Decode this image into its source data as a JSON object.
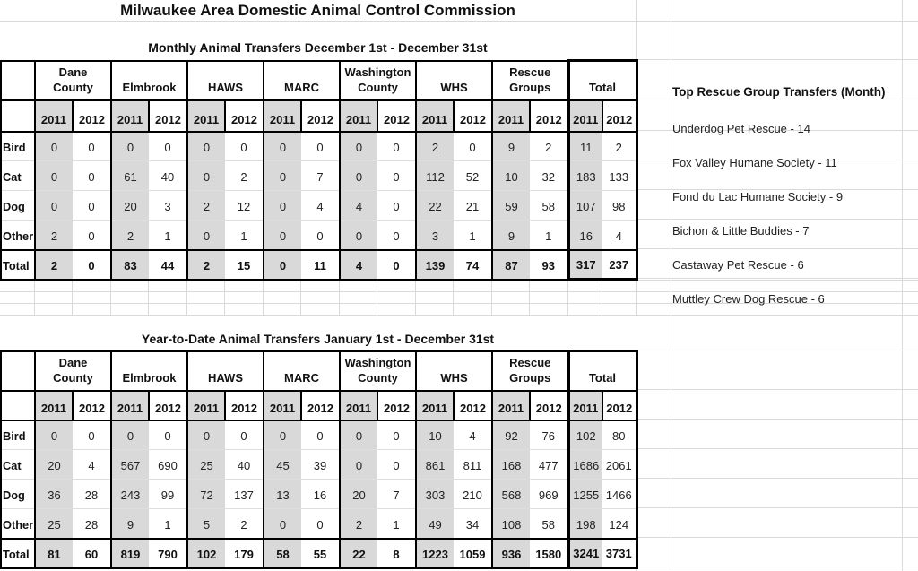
{
  "title": "Milwaukee Area Domestic Animal Control Commission",
  "columns": {
    "groups": [
      "Dane\nCounty",
      "Elmbrook",
      "HAWS",
      "MARC",
      "Washington\nCounty",
      "WHS",
      "Rescue\nGroups",
      "Total"
    ],
    "years": [
      "2011",
      "2012"
    ]
  },
  "tables": [
    {
      "title": "Monthly Animal Transfers December 1st - December 31st",
      "rows": [
        {
          "label": "Bird",
          "values": [
            0,
            0,
            0,
            0,
            0,
            0,
            0,
            0,
            0,
            0,
            2,
            0,
            9,
            2,
            11,
            2
          ]
        },
        {
          "label": "Cat",
          "values": [
            0,
            0,
            61,
            40,
            0,
            2,
            0,
            7,
            0,
            0,
            112,
            52,
            10,
            32,
            183,
            133
          ]
        },
        {
          "label": "Dog",
          "values": [
            0,
            0,
            20,
            3,
            2,
            12,
            0,
            4,
            4,
            0,
            22,
            21,
            59,
            58,
            107,
            98
          ]
        },
        {
          "label": "Other",
          "values": [
            2,
            0,
            2,
            1,
            0,
            1,
            0,
            0,
            0,
            0,
            3,
            1,
            9,
            1,
            16,
            4
          ]
        },
        {
          "label": "Total",
          "values": [
            2,
            0,
            83,
            44,
            2,
            15,
            0,
            11,
            4,
            0,
            139,
            74,
            87,
            93,
            317,
            237
          ]
        }
      ]
    },
    {
      "title": "Year-to-Date Animal Transfers January 1st - December 31st",
      "rows": [
        {
          "label": "Bird",
          "values": [
            0,
            0,
            0,
            0,
            0,
            0,
            0,
            0,
            0,
            0,
            10,
            4,
            92,
            76,
            102,
            80
          ]
        },
        {
          "label": "Cat",
          "values": [
            20,
            4,
            567,
            690,
            25,
            40,
            45,
            39,
            0,
            0,
            861,
            811,
            168,
            477,
            1686,
            2061
          ]
        },
        {
          "label": "Dog",
          "values": [
            36,
            28,
            243,
            99,
            72,
            137,
            13,
            16,
            20,
            7,
            303,
            210,
            568,
            969,
            1255,
            1466
          ]
        },
        {
          "label": "Other",
          "values": [
            25,
            28,
            9,
            1,
            5,
            2,
            0,
            0,
            2,
            1,
            49,
            34,
            108,
            58,
            198,
            124
          ]
        },
        {
          "label": "Total",
          "values": [
            81,
            60,
            819,
            790,
            102,
            179,
            58,
            55,
            22,
            8,
            1223,
            1059,
            936,
            1580,
            3241,
            3731
          ]
        }
      ]
    }
  ],
  "top_rescue": {
    "header": "Top Rescue Group Transfers (Month)",
    "items": [
      "Underdog Pet Rescue - 14",
      "Fox Valley Humane Society - 11",
      "Fond du Lac Humane Society - 9",
      "Bichon & Little Buddies - 7",
      "Castaway Pet Rescue - 6",
      "Muttley Crew Dog Rescue - 6"
    ]
  },
  "colors": {
    "fill_2011": "#d9d9d9",
    "table_border": "#000000",
    "gridline": "#d9d9d9",
    "text": "#1f1f1f"
  }
}
